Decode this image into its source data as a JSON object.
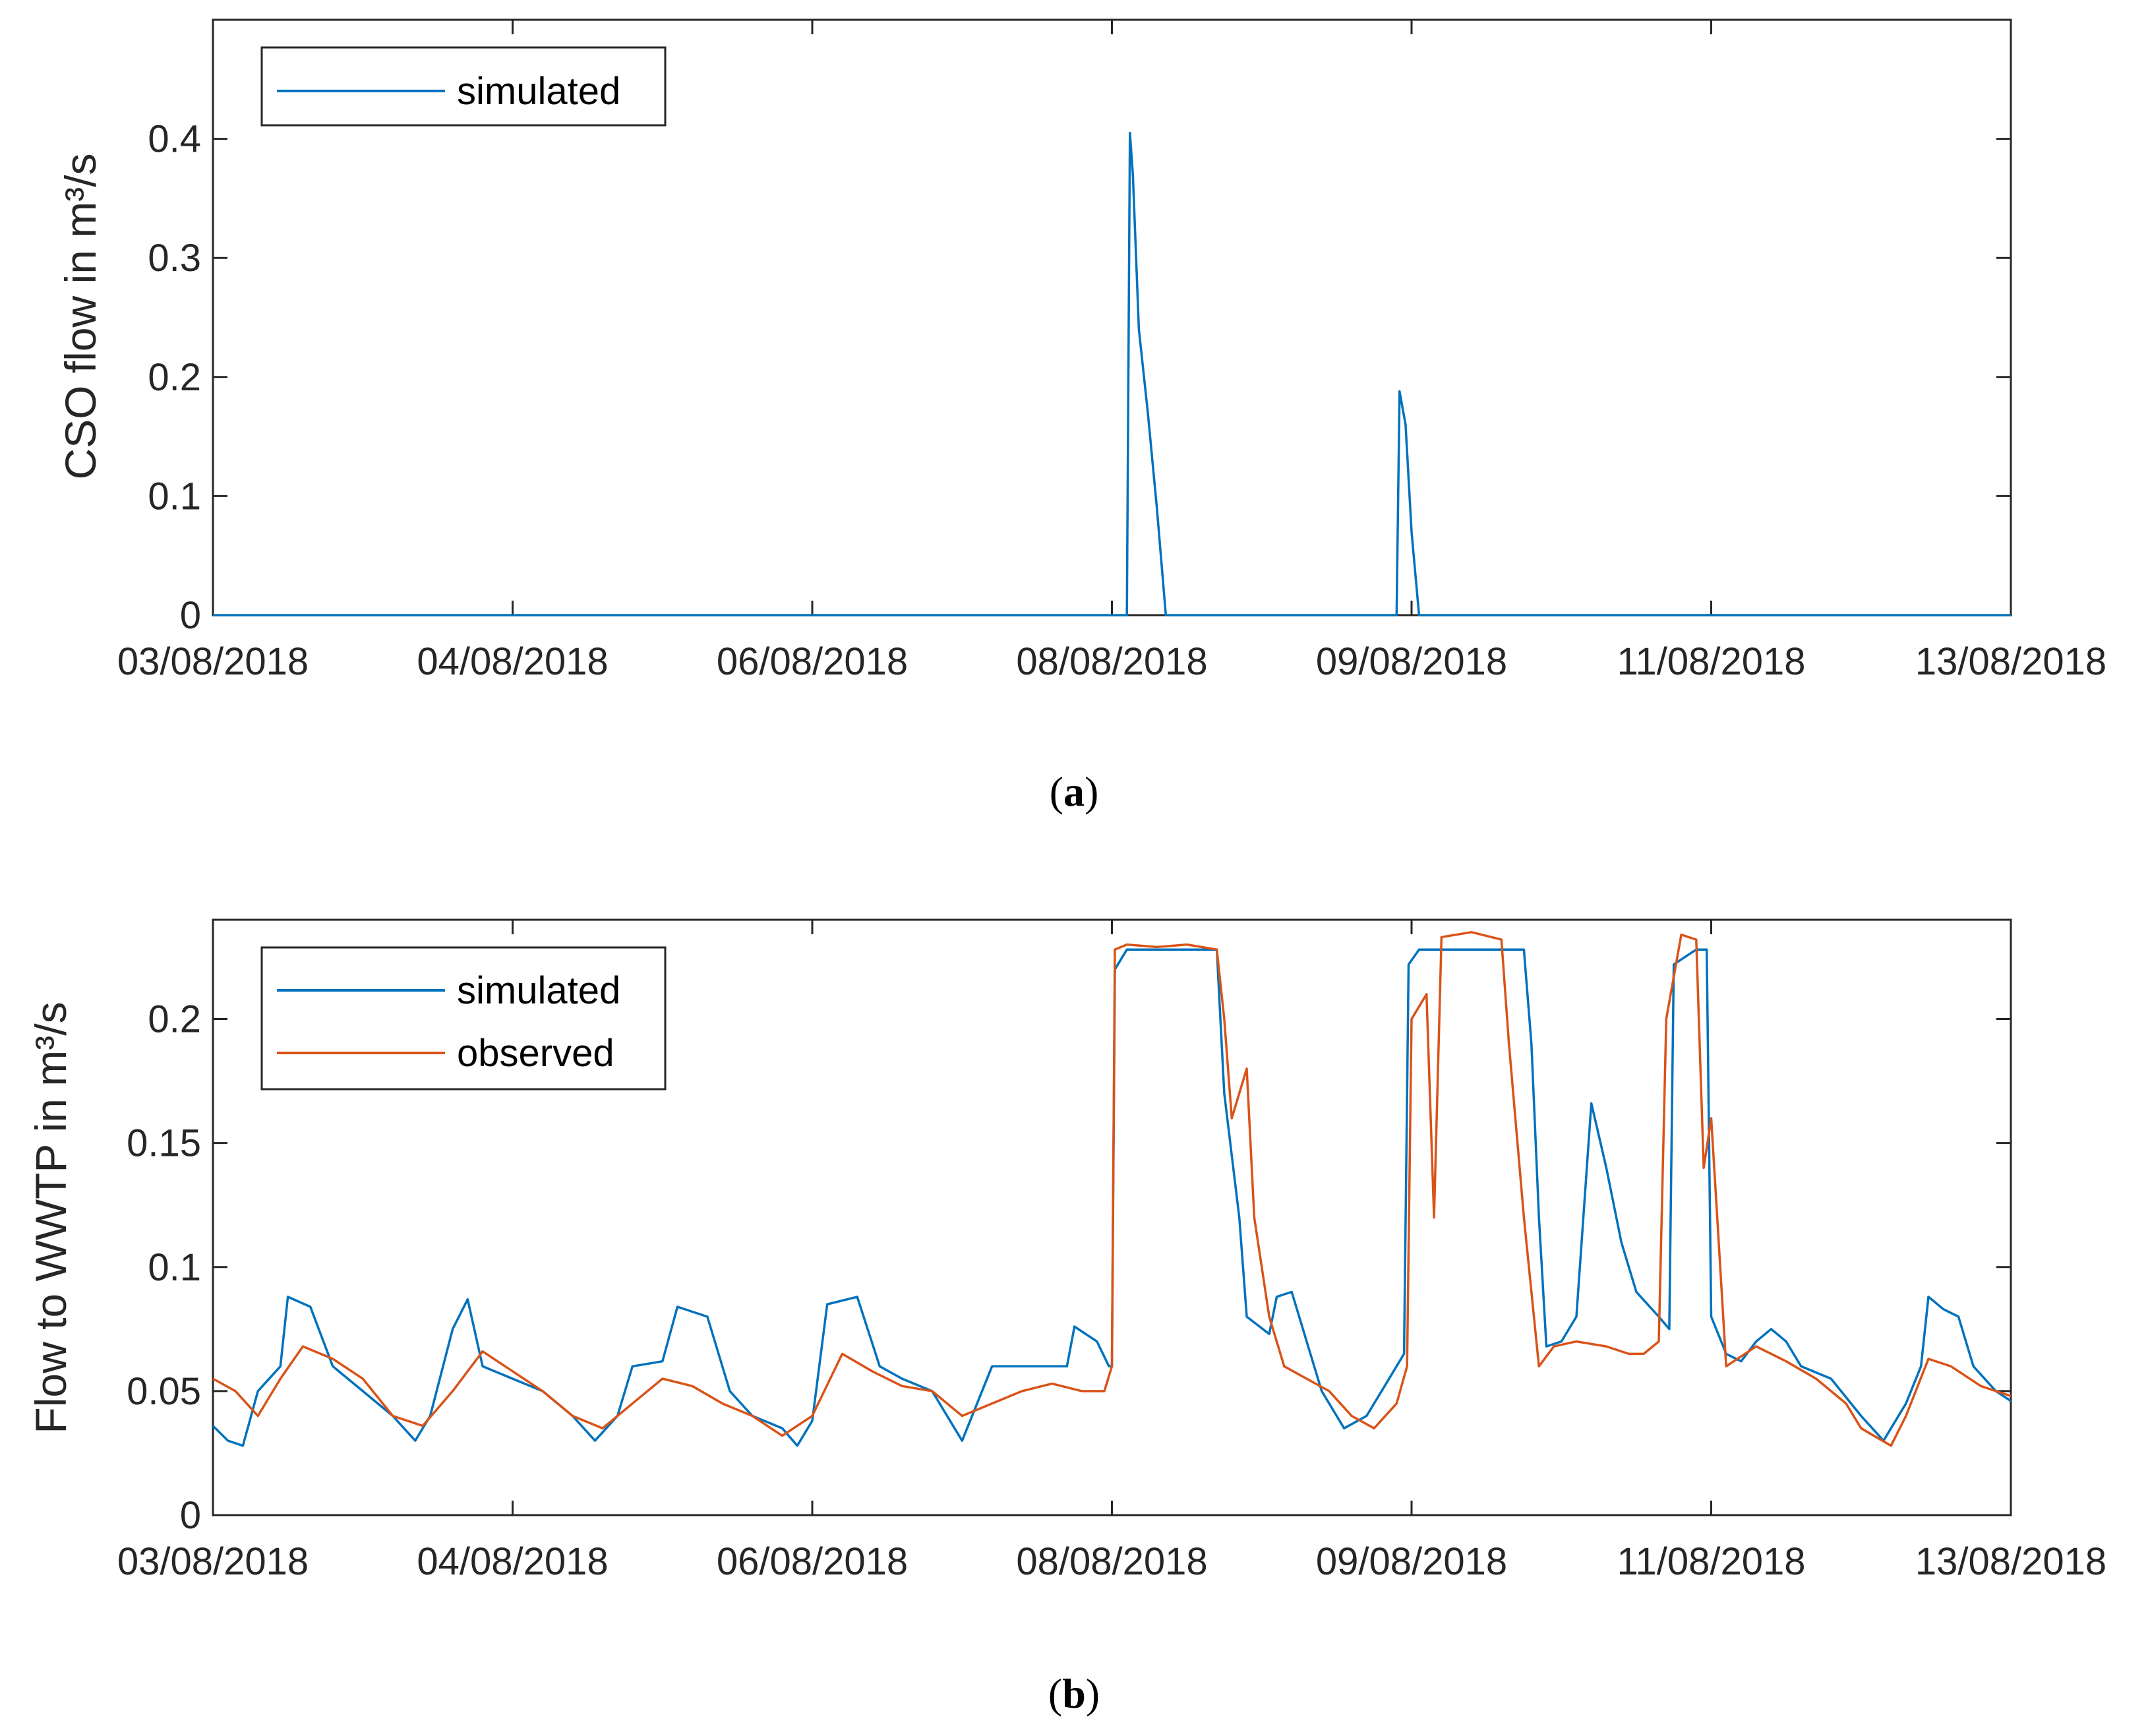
{
  "chart_data": [
    {
      "type": "line",
      "panel_label": "a",
      "ylabel": "CSO flow in m³/s",
      "xlim": [
        "03/08/2018",
        "13/08/2018"
      ],
      "ylim": [
        0,
        0.5
      ],
      "x_ticks": [
        "03/08/2018",
        "04/08/2018",
        "06/08/2018",
        "08/08/2018",
        "09/08/2018",
        "11/08/2018",
        "13/08/2018"
      ],
      "y_ticks": [
        "0",
        "0.1",
        "0.2",
        "0.3",
        "0.4"
      ],
      "legend_position": "top-left",
      "grid": false,
      "series": [
        {
          "name": "simulated",
          "color": "#0072BD",
          "points": [
            [
              0,
              0
            ],
            [
              6.1,
              0
            ],
            [
              6.12,
              0.405
            ],
            [
              6.14,
              0.37
            ],
            [
              6.18,
              0.24
            ],
            [
              6.24,
              0.17
            ],
            [
              6.3,
              0.09
            ],
            [
              6.36,
              0.0
            ],
            [
              7.9,
              0
            ],
            [
              7.92,
              0.188
            ],
            [
              7.96,
              0.16
            ],
            [
              8.0,
              0.07
            ],
            [
              8.05,
              0.0
            ],
            [
              12,
              0
            ]
          ]
        }
      ]
    },
    {
      "type": "line",
      "panel_label": "b",
      "ylabel": "Flow to WWTP in m³/s",
      "xlim": [
        "03/08/2018",
        "13/08/2018"
      ],
      "ylim": [
        0,
        0.24
      ],
      "x_ticks": [
        "03/08/2018",
        "04/08/2018",
        "06/08/2018",
        "08/08/2018",
        "09/08/2018",
        "11/08/2018",
        "13/08/2018"
      ],
      "y_ticks": [
        "0",
        "0.05",
        "0.1",
        "0.15",
        "0.2"
      ],
      "legend_position": "top-left",
      "grid": false,
      "series": [
        {
          "name": "simulated",
          "color": "#0072BD",
          "points": [
            [
              0,
              0.036
            ],
            [
              0.1,
              0.03
            ],
            [
              0.2,
              0.028
            ],
            [
              0.3,
              0.05
            ],
            [
              0.45,
              0.06
            ],
            [
              0.5,
              0.088
            ],
            [
              0.65,
              0.084
            ],
            [
              0.8,
              0.06
            ],
            [
              1.0,
              0.05
            ],
            [
              1.2,
              0.04
            ],
            [
              1.35,
              0.03
            ],
            [
              1.45,
              0.04
            ],
            [
              1.6,
              0.075
            ],
            [
              1.7,
              0.087
            ],
            [
              1.8,
              0.06
            ],
            [
              2.0,
              0.055
            ],
            [
              2.2,
              0.05
            ],
            [
              2.4,
              0.04
            ],
            [
              2.55,
              0.03
            ],
            [
              2.7,
              0.04
            ],
            [
              2.8,
              0.06
            ],
            [
              3.0,
              0.062
            ],
            [
              3.1,
              0.084
            ],
            [
              3.3,
              0.08
            ],
            [
              3.45,
              0.05
            ],
            [
              3.6,
              0.04
            ],
            [
              3.8,
              0.035
            ],
            [
              3.9,
              0.028
            ],
            [
              4.0,
              0.038
            ],
            [
              4.1,
              0.085
            ],
            [
              4.3,
              0.088
            ],
            [
              4.45,
              0.06
            ],
            [
              4.6,
              0.055
            ],
            [
              4.8,
              0.05
            ],
            [
              4.95,
              0.035
            ],
            [
              5.0,
              0.03
            ],
            [
              5.2,
              0.06
            ],
            [
              5.5,
              0.06
            ],
            [
              5.7,
              0.06
            ],
            [
              5.75,
              0.076
            ],
            [
              5.9,
              0.07
            ],
            [
              5.98,
              0.06
            ],
            [
              6.0,
              0.06
            ],
            [
              6.02,
              0.22
            ],
            [
              6.1,
              0.228
            ],
            [
              6.4,
              0.228
            ],
            [
              6.7,
              0.228
            ],
            [
              6.75,
              0.17
            ],
            [
              6.85,
              0.12
            ],
            [
              6.9,
              0.08
            ],
            [
              7.05,
              0.073
            ],
            [
              7.1,
              0.088
            ],
            [
              7.2,
              0.09
            ],
            [
              7.3,
              0.07
            ],
            [
              7.4,
              0.05
            ],
            [
              7.55,
              0.035
            ],
            [
              7.7,
              0.04
            ],
            [
              7.85,
              0.055
            ],
            [
              7.95,
              0.065
            ],
            [
              7.98,
              0.222
            ],
            [
              8.05,
              0.228
            ],
            [
              8.4,
              0.228
            ],
            [
              8.75,
              0.228
            ],
            [
              8.8,
              0.19
            ],
            [
              8.85,
              0.12
            ],
            [
              8.9,
              0.068
            ],
            [
              9.0,
              0.07
            ],
            [
              9.1,
              0.08
            ],
            [
              9.2,
              0.166
            ],
            [
              9.3,
              0.14
            ],
            [
              9.4,
              0.11
            ],
            [
              9.5,
              0.09
            ],
            [
              9.65,
              0.08
            ],
            [
              9.72,
              0.075
            ],
            [
              9.75,
              0.222
            ],
            [
              9.9,
              0.228
            ],
            [
              9.97,
              0.228
            ],
            [
              10.0,
              0.08
            ],
            [
              10.1,
              0.065
            ],
            [
              10.2,
              0.062
            ],
            [
              10.3,
              0.07
            ],
            [
              10.4,
              0.075
            ],
            [
              10.5,
              0.07
            ],
            [
              10.6,
              0.06
            ],
            [
              10.8,
              0.055
            ],
            [
              11.0,
              0.04
            ],
            [
              11.15,
              0.03
            ],
            [
              11.3,
              0.045
            ],
            [
              11.4,
              0.06
            ],
            [
              11.45,
              0.088
            ],
            [
              11.55,
              0.083
            ],
            [
              11.65,
              0.08
            ],
            [
              11.75,
              0.06
            ],
            [
              11.9,
              0.05
            ],
            [
              12.0,
              0.046
            ]
          ]
        },
        {
          "name": "observed",
          "color": "#D95319",
          "points": [
            [
              0,
              0.055
            ],
            [
              0.15,
              0.05
            ],
            [
              0.3,
              0.04
            ],
            [
              0.45,
              0.055
            ],
            [
              0.6,
              0.068
            ],
            [
              0.8,
              0.063
            ],
            [
              1.0,
              0.055
            ],
            [
              1.2,
              0.04
            ],
            [
              1.4,
              0.036
            ],
            [
              1.6,
              0.05
            ],
            [
              1.8,
              0.066
            ],
            [
              2.0,
              0.058
            ],
            [
              2.2,
              0.05
            ],
            [
              2.4,
              0.04
            ],
            [
              2.6,
              0.035
            ],
            [
              2.8,
              0.045
            ],
            [
              3.0,
              0.055
            ],
            [
              3.2,
              0.052
            ],
            [
              3.4,
              0.045
            ],
            [
              3.6,
              0.04
            ],
            [
              3.8,
              0.032
            ],
            [
              4.0,
              0.04
            ],
            [
              4.2,
              0.065
            ],
            [
              4.4,
              0.058
            ],
            [
              4.6,
              0.052
            ],
            [
              4.8,
              0.05
            ],
            [
              5.0,
              0.04
            ],
            [
              5.2,
              0.045
            ],
            [
              5.4,
              0.05
            ],
            [
              5.6,
              0.053
            ],
            [
              5.8,
              0.05
            ],
            [
              5.95,
              0.05
            ],
            [
              6.0,
              0.06
            ],
            [
              6.02,
              0.228
            ],
            [
              6.1,
              0.23
            ],
            [
              6.3,
              0.229
            ],
            [
              6.5,
              0.23
            ],
            [
              6.7,
              0.228
            ],
            [
              6.75,
              0.2
            ],
            [
              6.8,
              0.16
            ],
            [
              6.9,
              0.18
            ],
            [
              6.95,
              0.12
            ],
            [
              7.05,
              0.08
            ],
            [
              7.15,
              0.06
            ],
            [
              7.3,
              0.055
            ],
            [
              7.45,
              0.05
            ],
            [
              7.6,
              0.04
            ],
            [
              7.75,
              0.035
            ],
            [
              7.9,
              0.045
            ],
            [
              7.97,
              0.06
            ],
            [
              8.0,
              0.2
            ],
            [
              8.1,
              0.21
            ],
            [
              8.15,
              0.12
            ],
            [
              8.2,
              0.233
            ],
            [
              8.4,
              0.235
            ],
            [
              8.6,
              0.232
            ],
            [
              8.65,
              0.19
            ],
            [
              8.75,
              0.12
            ],
            [
              8.85,
              0.06
            ],
            [
              8.95,
              0.068
            ],
            [
              9.1,
              0.07
            ],
            [
              9.3,
              0.068
            ],
            [
              9.45,
              0.065
            ],
            [
              9.55,
              0.065
            ],
            [
              9.65,
              0.07
            ],
            [
              9.7,
              0.2
            ],
            [
              9.8,
              0.234
            ],
            [
              9.9,
              0.232
            ],
            [
              9.95,
              0.14
            ],
            [
              10.0,
              0.16
            ],
            [
              10.05,
              0.11
            ],
            [
              10.1,
              0.06
            ],
            [
              10.3,
              0.068
            ],
            [
              10.5,
              0.062
            ],
            [
              10.7,
              0.055
            ],
            [
              10.9,
              0.045
            ],
            [
              11.0,
              0.035
            ],
            [
              11.2,
              0.028
            ],
            [
              11.3,
              0.04
            ],
            [
              11.45,
              0.063
            ],
            [
              11.6,
              0.06
            ],
            [
              11.8,
              0.052
            ],
            [
              12.0,
              0.048
            ]
          ]
        }
      ]
    }
  ],
  "colors": {
    "simulated": "#0072BD",
    "observed": "#D95319",
    "axes": "#262626"
  }
}
